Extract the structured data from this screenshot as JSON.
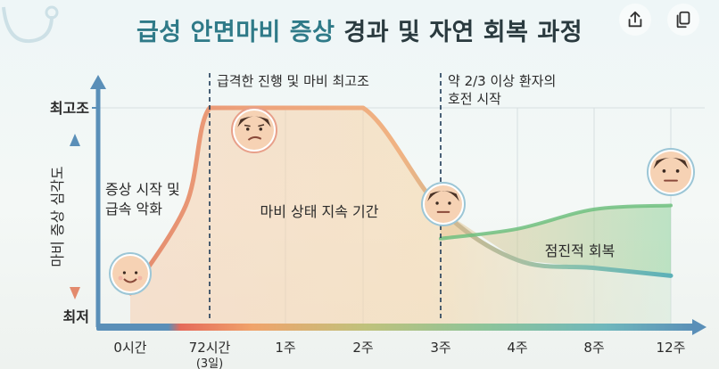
{
  "title": {
    "highlight": "급성 안면마비 증상",
    "rest": "경과 및 자연 회복 과정"
  },
  "toolbar": {
    "icons": [
      "share-icon",
      "copy-icon"
    ]
  },
  "chart_data": {
    "type": "line",
    "title": "급성 안면마비 증상 경과 및 자연 회복 과정",
    "ylabel": "마비 증상 심각도",
    "y_ticks": [
      "최고조",
      "최저"
    ],
    "x_ticks": [
      "0시간",
      "72시간",
      "1주",
      "2주",
      "3주",
      "4주",
      "8주",
      "12주"
    ],
    "x_sublabels": {
      "72시간": "(3일)"
    },
    "ylim": [
      0,
      100
    ],
    "series": [
      {
        "key": "severity",
        "x": [
          0,
          0.7,
          1,
          1.7,
          2,
          3,
          4,
          5,
          6,
          7
        ],
        "y": [
          5,
          50,
          100,
          100,
          100,
          100,
          48,
          22,
          18,
          14
        ]
      },
      {
        "key": "recovery",
        "x": [
          4,
          5,
          6,
          7
        ],
        "y": [
          33,
          38,
          48,
          50
        ]
      }
    ],
    "markers": [
      {
        "x": 1,
        "label": "급격한 진행 및 마비 최고조"
      },
      {
        "x": 4,
        "label_lines": [
          "약 2/3 이상 환자의",
          "호전 시작"
        ]
      }
    ],
    "annotations": [
      {
        "key": "onset",
        "lines": [
          "증상 시작 및",
          "급속 악화"
        ]
      },
      {
        "key": "plateau",
        "lines": [
          "마비 상태 지속 기간"
        ]
      },
      {
        "key": "recovery",
        "lines": [
          "점진적 회복"
        ]
      }
    ],
    "faces": [
      "smiling-face-icon",
      "sick-face-icon",
      "neutral-face-icon",
      "neutral-face-icon"
    ],
    "colors": {
      "severity_rise": "#e38a6d",
      "severity_fall": "#5bb0b8",
      "recovery": "#6fbf7f",
      "plateau_fill": "#f2c28f",
      "axis": "#5a8fb8",
      "title_accent": "#2f7a88"
    }
  }
}
